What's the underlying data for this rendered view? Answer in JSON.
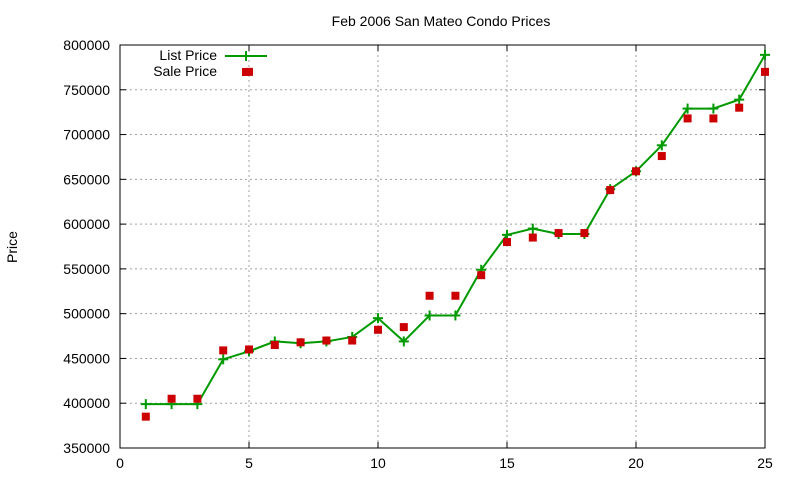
{
  "chart_data": {
    "type": "line",
    "title": "Feb 2006 San Mateo Condo Prices",
    "xlabel": "",
    "ylabel": "Price",
    "xlim": [
      0,
      25
    ],
    "ylim": [
      350000,
      800000
    ],
    "x_ticks": [
      0,
      5,
      10,
      15,
      20,
      25
    ],
    "y_ticks": [
      350000,
      400000,
      450000,
      500000,
      550000,
      600000,
      650000,
      700000,
      750000,
      800000
    ],
    "grid": true,
    "legend_position": "top-left",
    "series": [
      {
        "name": "List Price",
        "kind": "line-with-plus-markers",
        "color": "#009900",
        "x": [
          1,
          2,
          3,
          4,
          5,
          6,
          7,
          8,
          9,
          10,
          11,
          12,
          13,
          14,
          15,
          16,
          17,
          18,
          19,
          20,
          21,
          22,
          23,
          24,
          25
        ],
        "values": [
          399000,
          399000,
          399000,
          449000,
          458000,
          469000,
          467000,
          469000,
          474000,
          495000,
          469000,
          498000,
          498000,
          549000,
          588000,
          595000,
          589000,
          589000,
          639000,
          659000,
          688000,
          729000,
          729000,
          739000,
          789000
        ]
      },
      {
        "name": "Sale Price",
        "kind": "square-markers",
        "color": "#cc0000",
        "x": [
          1,
          2,
          3,
          4,
          5,
          5,
          6,
          7,
          8,
          9,
          10,
          11,
          12,
          13,
          14,
          15,
          16,
          17,
          18,
          19,
          20,
          21,
          22,
          23,
          24,
          25
        ],
        "values": [
          385000,
          405000,
          405000,
          459000,
          460000,
          770000,
          465000,
          468000,
          470000,
          470000,
          482000,
          485000,
          520000,
          520000,
          543000,
          580000,
          585000,
          590000,
          590000,
          638000,
          659000,
          676000,
          718000,
          718000,
          730000,
          770000
        ]
      }
    ]
  }
}
